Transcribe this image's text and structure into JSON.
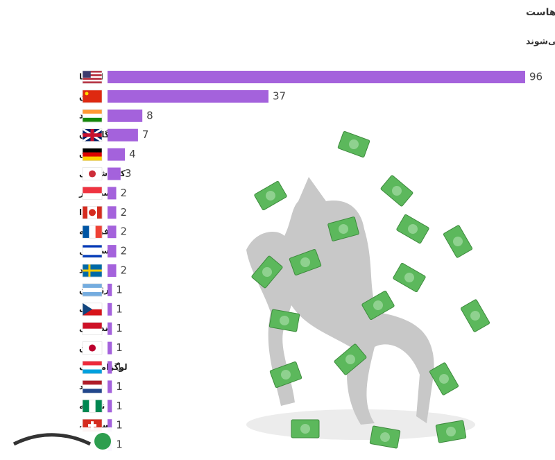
{
  "chart_data": {
    "type": "bar",
    "orientation": "horizontal",
    "title": "امریکا، خانه تک‌شاخ‌هاست",
    "subtitle": "شرکت‌های خصوصی که بالای یک میلیارد دلار ارزش دارند و «تک‌شاخ» نامیده می‌شوند",
    "categories": [
      "امریکا",
      "چین",
      "هند",
      "انگلستان",
      "آلمان",
      "کره شمالی",
      "سنگاپور",
      "کانادا",
      "فرانسه",
      "اسرائیل",
      "سوئد",
      "آرژانتین",
      "چک",
      "اندونزی",
      "ژاپن",
      "لوگزامبورگ",
      "هلند",
      "نیجریه",
      "سوئیس",
      null
    ],
    "values": [
      96,
      37,
      8,
      7,
      4,
      3,
      2,
      2,
      2,
      2,
      2,
      1,
      1,
      1,
      1,
      1,
      1,
      1,
      1,
      1
    ],
    "color": "#a462dc"
  }
}
